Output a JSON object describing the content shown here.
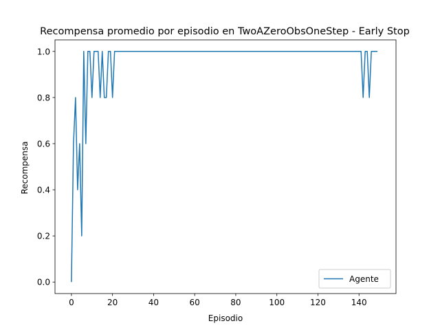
{
  "chart_data": {
    "type": "line",
    "title": "Recompensa promedio por episodio en TwoAZeroObsOneStep - Early Stop",
    "xlabel": "Episodio",
    "ylabel": "Recompensa",
    "xlim": [
      -8,
      158
    ],
    "ylim": [
      -0.05,
      1.05
    ],
    "xticks": [
      0,
      20,
      40,
      60,
      80,
      100,
      120,
      140
    ],
    "xtick_labels": [
      "0",
      "20",
      "40",
      "60",
      "80",
      "100",
      "120",
      "140"
    ],
    "yticks": [
      0.0,
      0.2,
      0.4,
      0.6,
      0.8,
      1.0
    ],
    "ytick_labels": [
      "0.0",
      "0.2",
      "0.4",
      "0.6",
      "0.8",
      "1.0"
    ],
    "grid": false,
    "legend_position": "lower-right",
    "series": [
      {
        "name": "Agente",
        "color": "#1f77b4",
        "x": [
          0,
          1,
          2,
          3,
          4,
          5,
          6,
          7,
          8,
          9,
          10,
          11,
          12,
          13,
          14,
          15,
          16,
          17,
          18,
          19,
          20,
          21,
          22,
          140,
          141,
          142,
          143,
          144,
          145,
          146,
          147,
          148,
          149
        ],
        "y": [
          0.0,
          0.6,
          0.8,
          0.4,
          0.6,
          0.2,
          1.0,
          0.6,
          1.0,
          1.0,
          0.8,
          1.0,
          1.0,
          1.0,
          0.8,
          1.0,
          0.8,
          0.8,
          1.0,
          1.0,
          0.8,
          1.0,
          1.0,
          1.0,
          1.0,
          0.8,
          1.0,
          1.0,
          0.8,
          1.0,
          1.0,
          1.0,
          1.0
        ]
      }
    ]
  }
}
